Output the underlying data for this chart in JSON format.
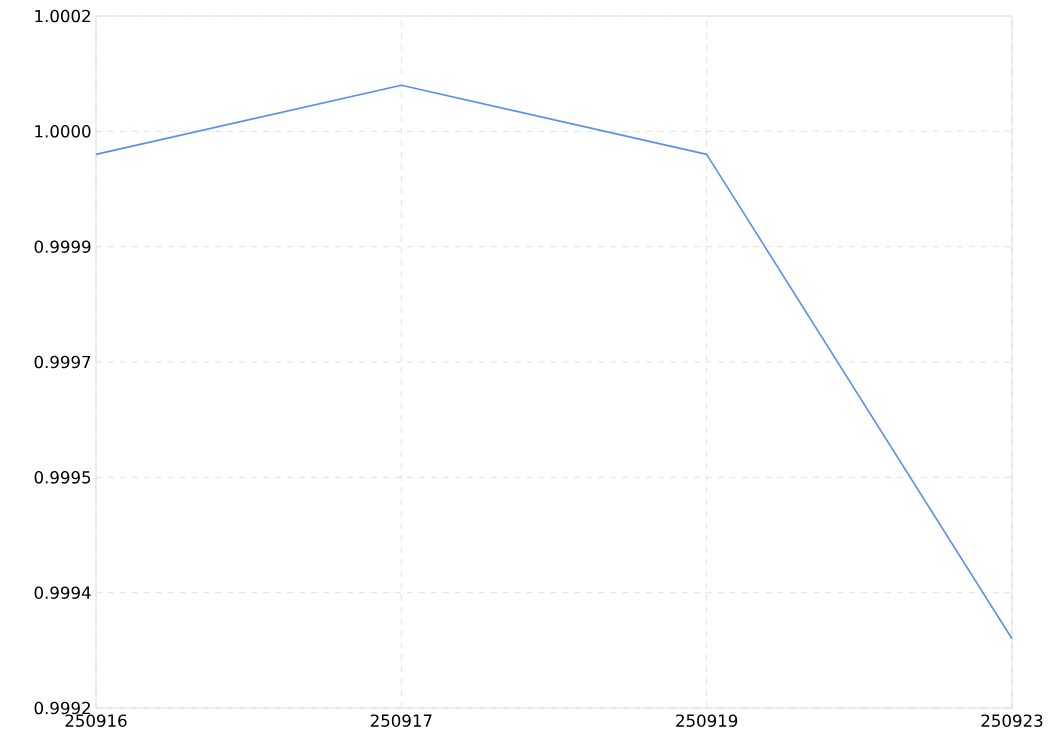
{
  "chart_data": {
    "type": "line",
    "categories": [
      "250916",
      "250917",
      "250919",
      "250923"
    ],
    "series": [
      {
        "color": "#5a8fea",
        "values": [
          1.0,
          1.0001,
          1.0,
          0.9993
        ]
      }
    ],
    "ylim": [
      0.9992,
      1.0002
    ],
    "yticks": [
      {
        "value": 0.9992,
        "label": "0.9992"
      },
      {
        "value": 0.99936667,
        "label": "0.9994"
      },
      {
        "value": 0.99953333,
        "label": "0.9995"
      },
      {
        "value": 0.9997,
        "label": "0.9997"
      },
      {
        "value": 0.99986667,
        "label": "0.9999"
      },
      {
        "value": 1.00003333,
        "label": "1.0000"
      },
      {
        "value": 1.0002,
        "label": "1.0002"
      }
    ],
    "grid": true
  }
}
